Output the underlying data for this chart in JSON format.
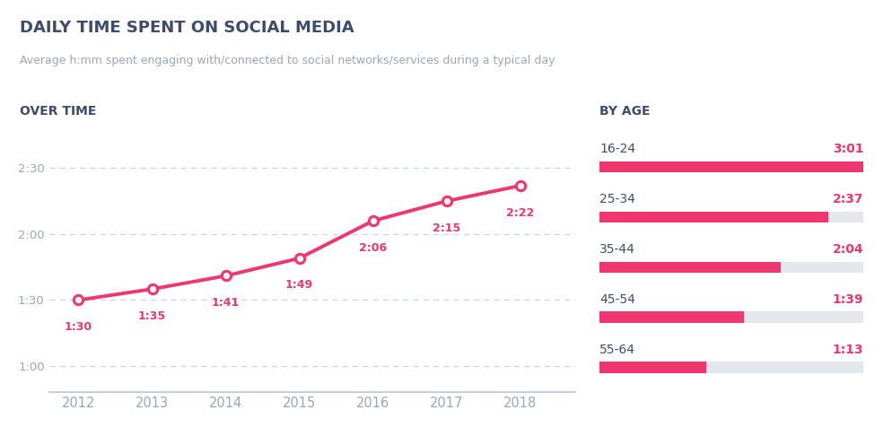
{
  "title": "DAILY TIME SPENT ON SOCIAL MEDIA",
  "subtitle": "Average h:mm spent engaging with/connected to social networks/services during a typical day",
  "left_section_title": "OVER TIME",
  "right_section_title": "BY AGE",
  "years": [
    2012,
    2013,
    2014,
    2015,
    2016,
    2017,
    2018
  ],
  "values_minutes": [
    90,
    95,
    101,
    109,
    126,
    135,
    142
  ],
  "labels": [
    "1:30",
    "1:35",
    "1:41",
    "1:49",
    "2:06",
    "2:15",
    "2:22"
  ],
  "line_color": "#F0366E",
  "marker_color": "#F0366E",
  "grid_color": "#C8D0DC",
  "axis_label_color": "#9BA7B8",
  "title_color": "#3D4B6E",
  "subtitle_color": "#9BA7B8",
  "section_title_color": "#3D4B6E",
  "data_label_color": "#F0366E",
  "ytick_labels": [
    "1:00",
    "1:30",
    "2:00",
    "2:30"
  ],
  "ytick_values": [
    60,
    90,
    120,
    150
  ],
  "ylim": [
    48,
    162
  ],
  "age_groups": [
    "16-24",
    "25-34",
    "35-44",
    "45-54",
    "55-64"
  ],
  "age_values_minutes": [
    181,
    157,
    124,
    99,
    73
  ],
  "age_labels": [
    "3:01",
    "2:37",
    "2:04",
    "1:39",
    "1:13"
  ],
  "age_max_minutes": 181,
  "bar_color": "#F0366E",
  "bar_bg_color": "#E4E7EC",
  "background_color": "#FFFFFF"
}
